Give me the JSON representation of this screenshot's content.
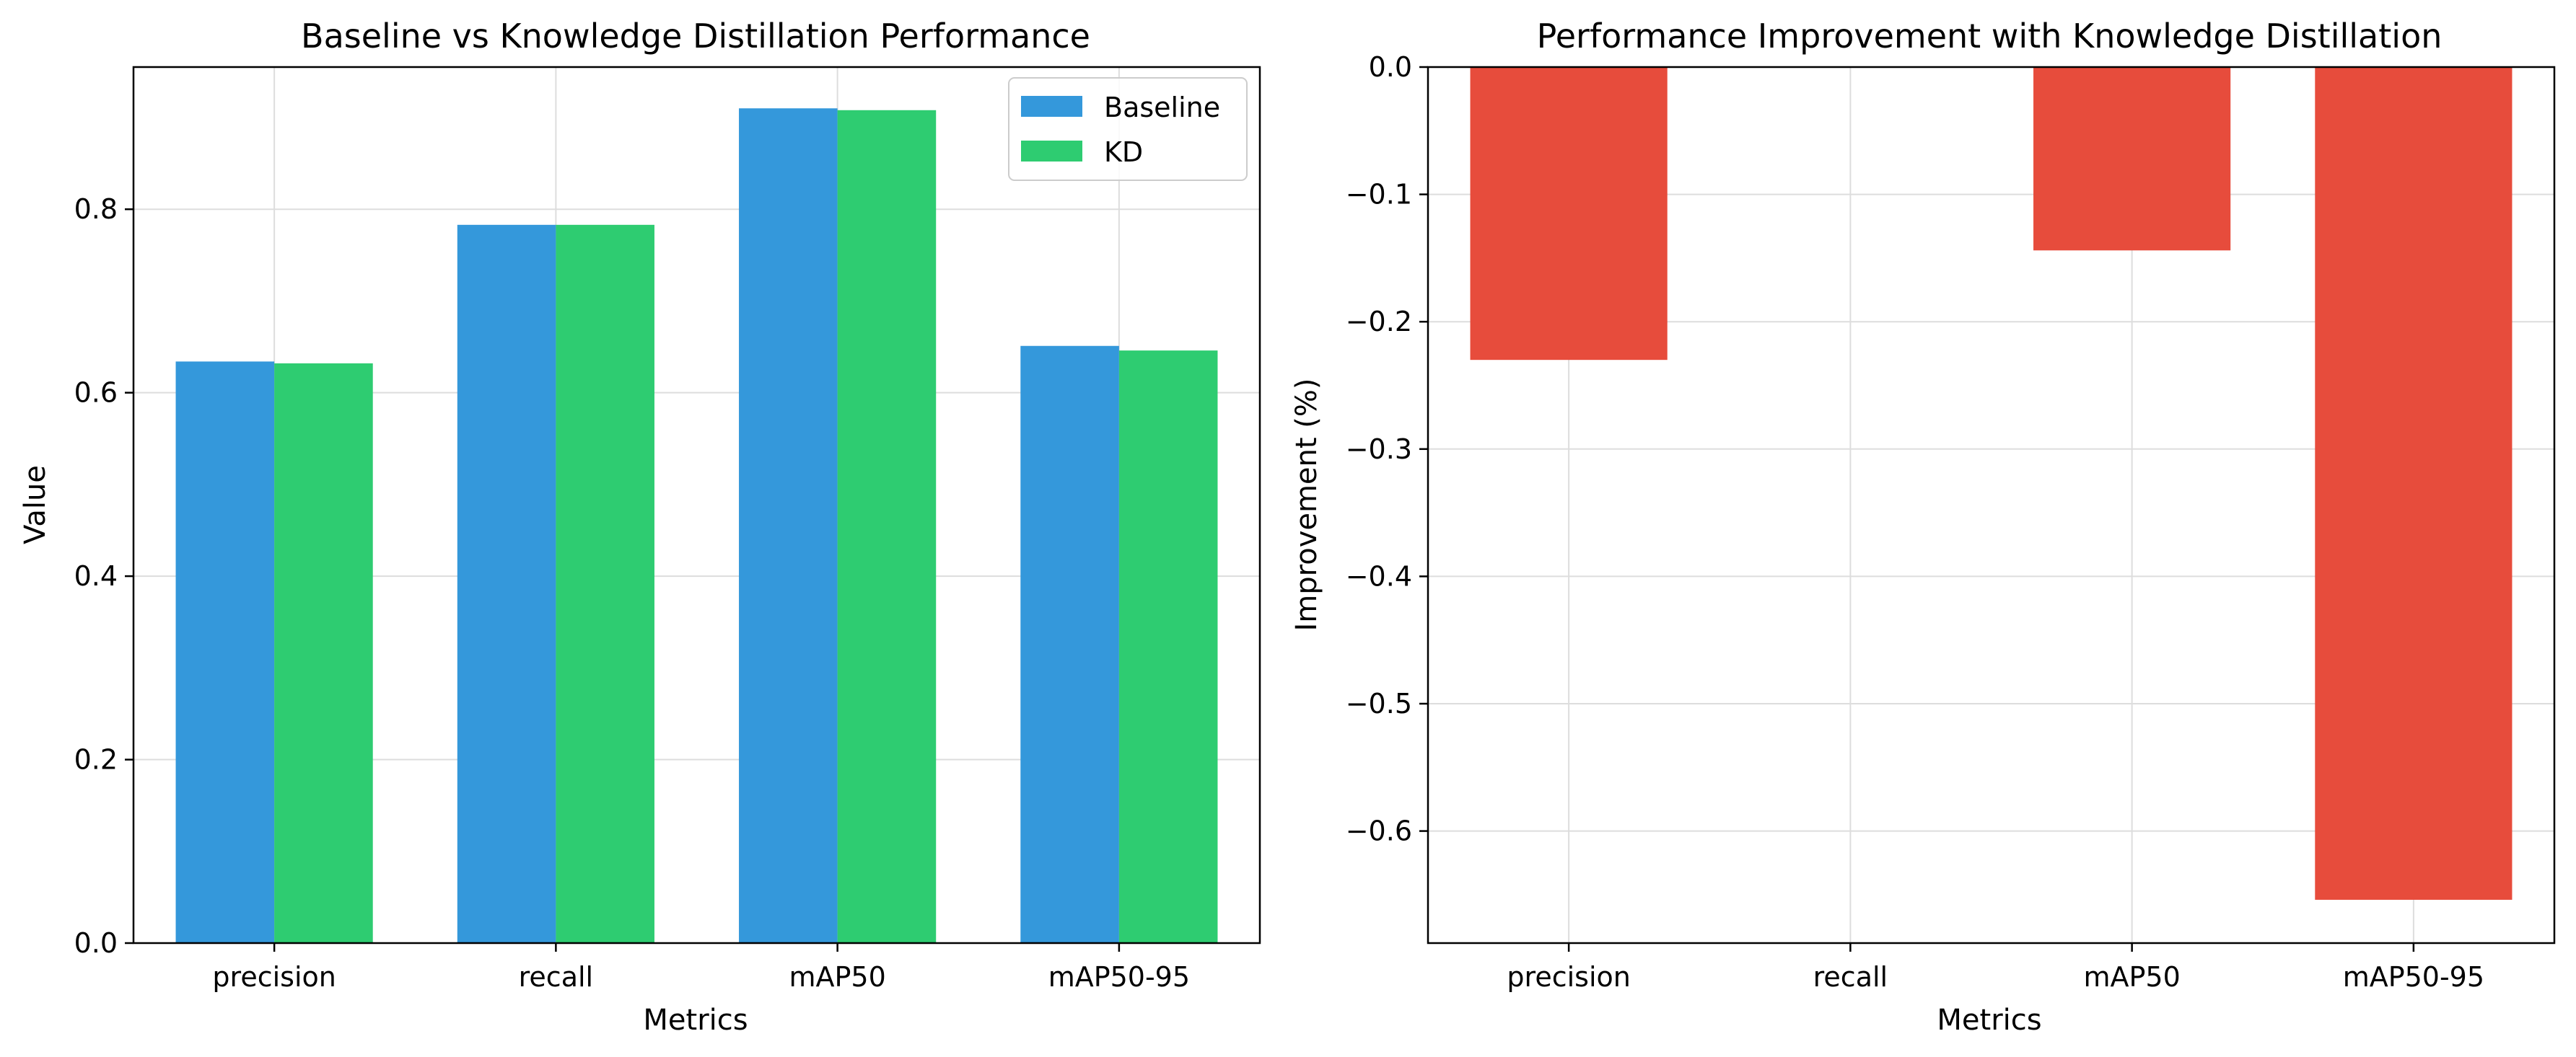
{
  "chart_data": [
    {
      "type": "bar",
      "title": "Baseline vs Knowledge Distillation Performance",
      "xlabel": "Metrics",
      "ylabel": "Value",
      "categories": [
        "precision",
        "recall",
        "mAP50",
        "mAP50-95"
      ],
      "series": [
        {
          "name": "Baseline",
          "color": "#3498db",
          "values": [
            0.634,
            0.783,
            0.91,
            0.651
          ]
        },
        {
          "name": "KD",
          "color": "#2ecc71",
          "values": [
            0.632,
            0.783,
            0.908,
            0.646
          ]
        }
      ],
      "ylim": [
        0,
        0.955
      ],
      "yticks": [
        0.0,
        0.2,
        0.4,
        0.6,
        0.8
      ],
      "ytick_labels": [
        "0.0",
        "0.2",
        "0.4",
        "0.6",
        "0.8"
      ],
      "grid": true,
      "legend": "top-right"
    },
    {
      "type": "bar",
      "title": "Performance Improvement with Knowledge Distillation",
      "xlabel": "Metrics",
      "ylabel": "Improvement (%)",
      "categories": [
        "precision",
        "recall",
        "mAP50",
        "mAP50-95"
      ],
      "series": [
        {
          "color": "#e74c3c",
          "values": [
            -0.23,
            0.0,
            -0.144,
            -0.654
          ]
        }
      ],
      "ylim": [
        -0.688,
        0.0
      ],
      "yticks": [
        0.0,
        -0.1,
        -0.2,
        -0.3,
        -0.4,
        -0.5,
        -0.6
      ],
      "ytick_labels": [
        "0.0",
        "−0.1",
        "−0.2",
        "−0.3",
        "−0.4",
        "−0.5",
        "−0.6"
      ],
      "grid": true
    }
  ]
}
